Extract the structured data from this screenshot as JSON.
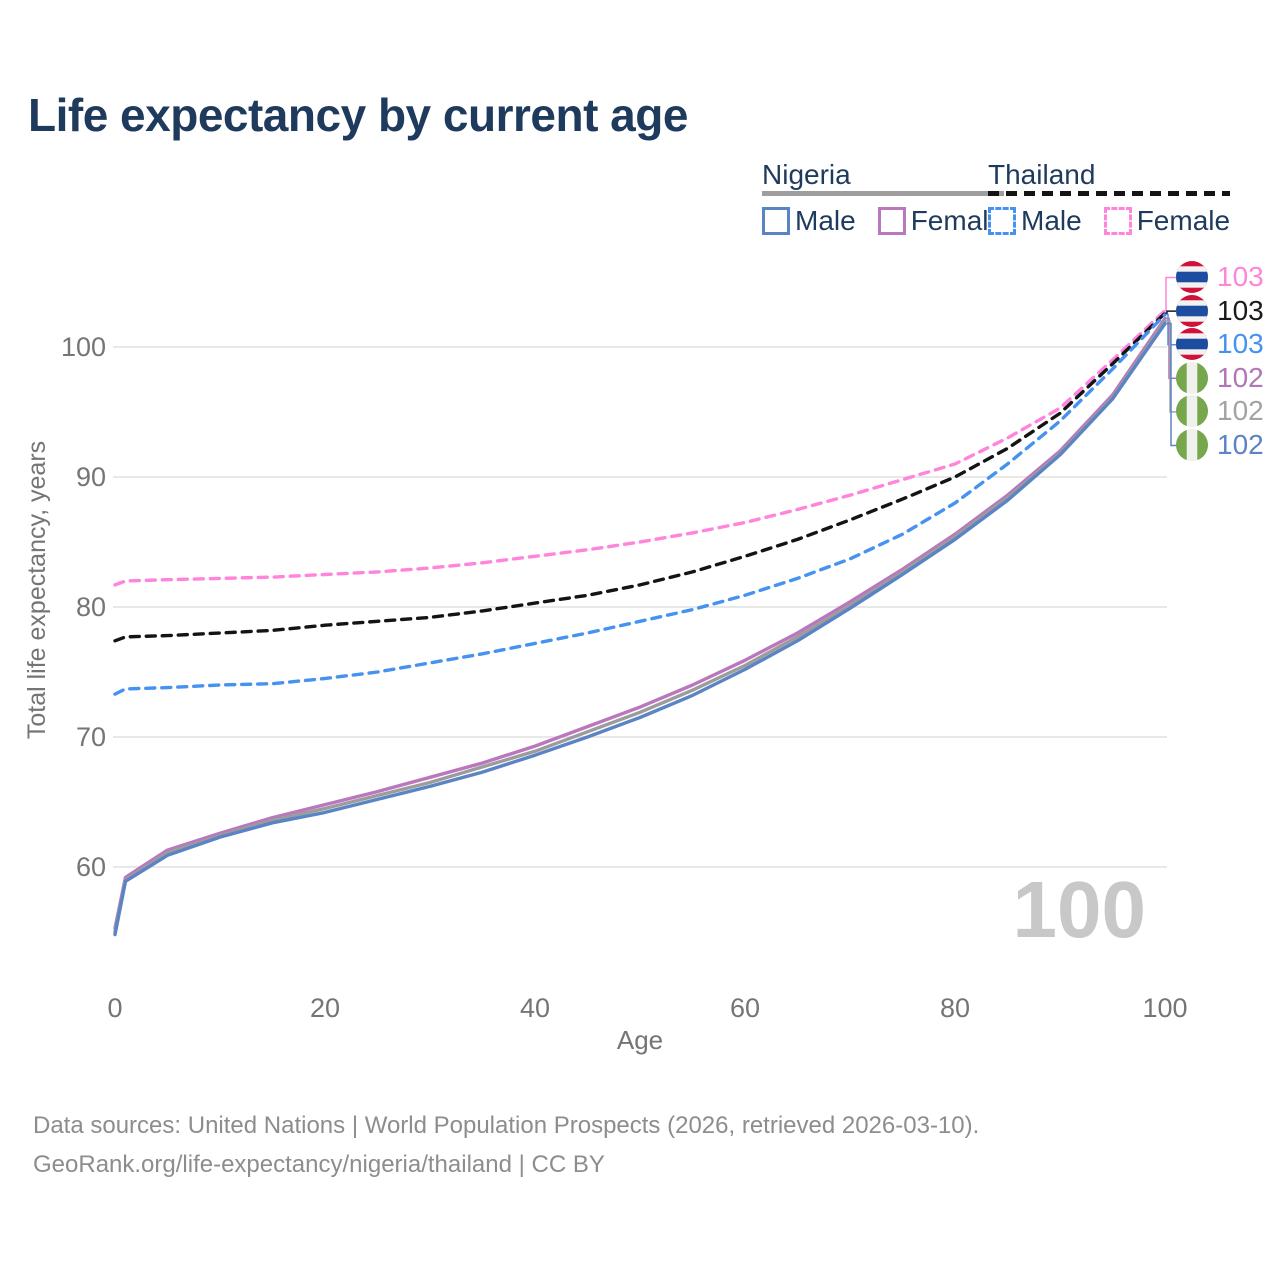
{
  "title": "Life expectancy by current age",
  "age_counter": "100",
  "footer": {
    "line1": "Data sources: United Nations | World Population Prospects (2026, retrieved 2026-03-10).",
    "line2": "GeoRank.org/life-expectancy/nigeria/thailand | CC BY"
  },
  "colors": {
    "title_navy": "#1e3a5c",
    "tick_gray": "#757575",
    "grid_gray": "#e8e8e8",
    "footer_gray": "#8d8d8d",
    "counter_gray": "#c8c8c8",
    "nigeria_underline": "#9e9e9e",
    "thailand_underline": "#141414",
    "thai_flag_red": "#d0123b",
    "thai_flag_blue": "#1d4da0",
    "nigeria_flag_green": "#77a74c"
  },
  "legend": {
    "groups": [
      {
        "country": "Nigeria",
        "underline_style": "solid",
        "underline_color": "#9e9e9e",
        "items": [
          {
            "label": "Male",
            "color": "#5b84c4",
            "dashed": false
          },
          {
            "label": "Female",
            "color": "#ba77bd",
            "dashed": false
          }
        ]
      },
      {
        "country": "Thailand",
        "underline_style": "dashed",
        "underline_color": "#141414",
        "items": [
          {
            "label": "Male",
            "color": "#4592f0",
            "dashed": true
          },
          {
            "label": "Female",
            "color": "#ff84dc",
            "dashed": true
          }
        ]
      }
    ]
  },
  "chart_data": {
    "type": "line",
    "title": "Life expectancy by current age",
    "xlabel": "Age",
    "ylabel": "Total life expectancy, years",
    "xlim": [
      0,
      100
    ],
    "ylim": [
      53,
      105
    ],
    "x_ticks": [
      0,
      20,
      40,
      60,
      80,
      100
    ],
    "y_ticks": [
      100,
      90,
      80,
      70,
      60
    ],
    "grid": "horizontal-only",
    "legend_position": "top-right",
    "ages": [
      0,
      1,
      5,
      10,
      15,
      20,
      25,
      30,
      35,
      40,
      45,
      50,
      55,
      60,
      65,
      70,
      75,
      80,
      85,
      90,
      95,
      100
    ],
    "series": [
      {
        "key": "thailand_female",
        "name": "Thailand Female",
        "country": "Thailand",
        "sex": "Female",
        "style": "dashed",
        "color": "#ff84dc",
        "values": [
          81.7,
          82.0,
          82.1,
          82.2,
          82.3,
          82.5,
          82.7,
          83.0,
          83.4,
          83.9,
          84.4,
          85.0,
          85.7,
          86.5,
          87.5,
          88.6,
          89.8,
          91.0,
          93.0,
          95.3,
          99.0,
          102.8
        ]
      },
      {
        "key": "thailand_total",
        "name": "Thailand",
        "country": "Thailand",
        "sex": "Both",
        "style": "dashed",
        "color": "#141414",
        "values": [
          77.4,
          77.7,
          77.8,
          78.0,
          78.2,
          78.6,
          78.9,
          79.2,
          79.7,
          80.3,
          80.9,
          81.7,
          82.7,
          83.9,
          85.2,
          86.7,
          88.3,
          90.0,
          92.2,
          94.9,
          98.7,
          102.6
        ]
      },
      {
        "key": "thailand_male",
        "name": "Thailand Male",
        "country": "Thailand",
        "sex": "Male",
        "style": "dashed",
        "color": "#4592f0",
        "values": [
          73.3,
          73.7,
          73.8,
          74.0,
          74.1,
          74.5,
          75.0,
          75.7,
          76.4,
          77.2,
          78.0,
          78.9,
          79.8,
          80.9,
          82.2,
          83.7,
          85.6,
          88.0,
          91.0,
          94.3,
          98.3,
          102.5
        ]
      },
      {
        "key": "nigeria_female",
        "name": "Nigeria Female",
        "country": "Nigeria",
        "sex": "Female",
        "style": "solid",
        "color": "#ba77bd",
        "values": [
          55.3,
          59.2,
          61.3,
          62.6,
          63.8,
          64.8,
          65.8,
          66.9,
          68.0,
          69.3,
          70.8,
          72.3,
          74.0,
          75.9,
          78.0,
          80.4,
          82.9,
          85.6,
          88.6,
          92.0,
          96.3,
          102.2
        ]
      },
      {
        "key": "nigeria_total",
        "name": "Nigeria",
        "country": "Nigeria",
        "sex": "Both",
        "style": "solid",
        "color": "#9c9c9c",
        "values": [
          55.0,
          59.0,
          61.1,
          62.4,
          63.6,
          64.5,
          65.5,
          66.5,
          67.7,
          68.9,
          70.4,
          71.9,
          73.6,
          75.5,
          77.7,
          80.1,
          82.7,
          85.4,
          88.4,
          91.8,
          96.1,
          102.0
        ]
      },
      {
        "key": "nigeria_male",
        "name": "Nigeria Male",
        "country": "Nigeria",
        "sex": "Male",
        "style": "solid",
        "color": "#5b84c4",
        "values": [
          54.8,
          58.9,
          60.9,
          62.3,
          63.4,
          64.2,
          65.2,
          66.2,
          67.3,
          68.6,
          70.0,
          71.5,
          73.2,
          75.2,
          77.4,
          79.9,
          82.5,
          85.2,
          88.2,
          91.7,
          96.0,
          101.8
        ]
      }
    ],
    "end_labels": [
      {
        "value": "103",
        "color": "#ff84dc",
        "flag": "thailand",
        "series_key": "thailand_female"
      },
      {
        "value": "103",
        "color": "#1a1a1a",
        "flag": "thailand",
        "series_key": "thailand_total"
      },
      {
        "value": "103",
        "color": "#4592f0",
        "flag": "thailand",
        "series_key": "thailand_male"
      },
      {
        "value": "102",
        "color": "#b176b4",
        "flag": "nigeria",
        "series_key": "nigeria_female"
      },
      {
        "value": "102",
        "color": "#a3a3a3",
        "flag": "nigeria",
        "series_key": "nigeria_total"
      },
      {
        "value": "102",
        "color": "#5b84c4",
        "flag": "nigeria",
        "series_key": "nigeria_male"
      }
    ]
  }
}
